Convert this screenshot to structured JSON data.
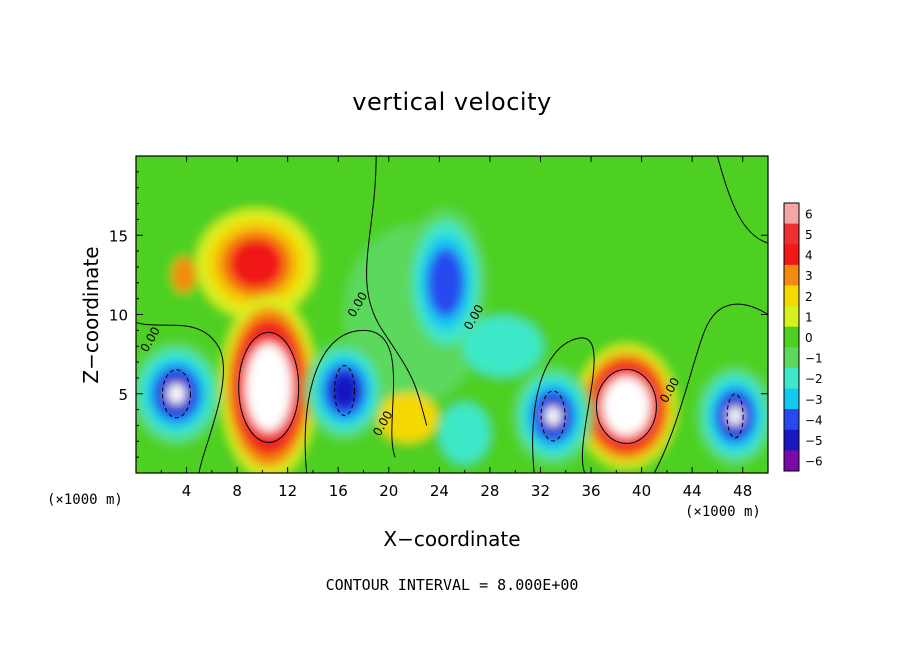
{
  "chart_data": {
    "type": "heatmap",
    "title": "vertical velocity",
    "xlabel": "X−coordinate",
    "ylabel": "Z−coordinate",
    "x_unit_left": "(×1000 m)",
    "x_unit_right": "(×1000 m)",
    "footer": "CONTOUR INTERVAL = 8.000E+00",
    "xlim": [
      0,
      50
    ],
    "ylim": [
      0,
      20
    ],
    "xticks": [
      4,
      8,
      12,
      16,
      20,
      24,
      28,
      32,
      36,
      40,
      44,
      48
    ],
    "xtick_labels": [
      "4",
      "8",
      "12",
      "16",
      "20",
      "24",
      "28",
      "32",
      "36",
      "40",
      "44",
      "48"
    ],
    "yticks": [
      5,
      10,
      15
    ],
    "ytick_labels": [
      "5",
      "10",
      "15"
    ],
    "colorbar": {
      "levels": [
        6,
        5,
        4,
        3,
        2,
        1,
        0,
        -1,
        -2,
        -3,
        -4,
        -5,
        -6
      ],
      "labels": [
        "6",
        "5",
        "4",
        "3",
        "2",
        "1",
        "0",
        "−1",
        "−2",
        "−3",
        "−4",
        "−5",
        "−6"
      ],
      "colors": [
        "#f4a6a6",
        "#ee3030",
        "#f01818",
        "#f58a10",
        "#f5d800",
        "#d8f020",
        "#4ed020",
        "#5cd85c",
        "#3ee8c8",
        "#14c8f0",
        "#2848f0",
        "#1818c0",
        "#7a0aa8"
      ]
    },
    "contour_labels": [
      "0.00",
      "0.00",
      "0.00",
      "0.00",
      "0.00"
    ],
    "features": [
      {
        "type": "updraft",
        "x": 10.5,
        "z": 5.5,
        "peak": 8
      },
      {
        "type": "updraft",
        "x": 39,
        "z": 4,
        "peak": 8
      },
      {
        "type": "updraft-upper",
        "x": 9.5,
        "z": 13,
        "peak": 4
      },
      {
        "type": "downdraft",
        "x": 3,
        "z": 5,
        "peak": -8
      },
      {
        "type": "downdraft",
        "x": 16.5,
        "z": 5,
        "peak": -5
      },
      {
        "type": "downdraft",
        "x": 33,
        "z": 3.5,
        "peak": -8
      },
      {
        "type": "downdraft",
        "x": 47.5,
        "z": 3.5,
        "peak": -8
      },
      {
        "type": "downdraft-upper",
        "x": 24.5,
        "z": 12,
        "peak": -3.5
      }
    ]
  }
}
